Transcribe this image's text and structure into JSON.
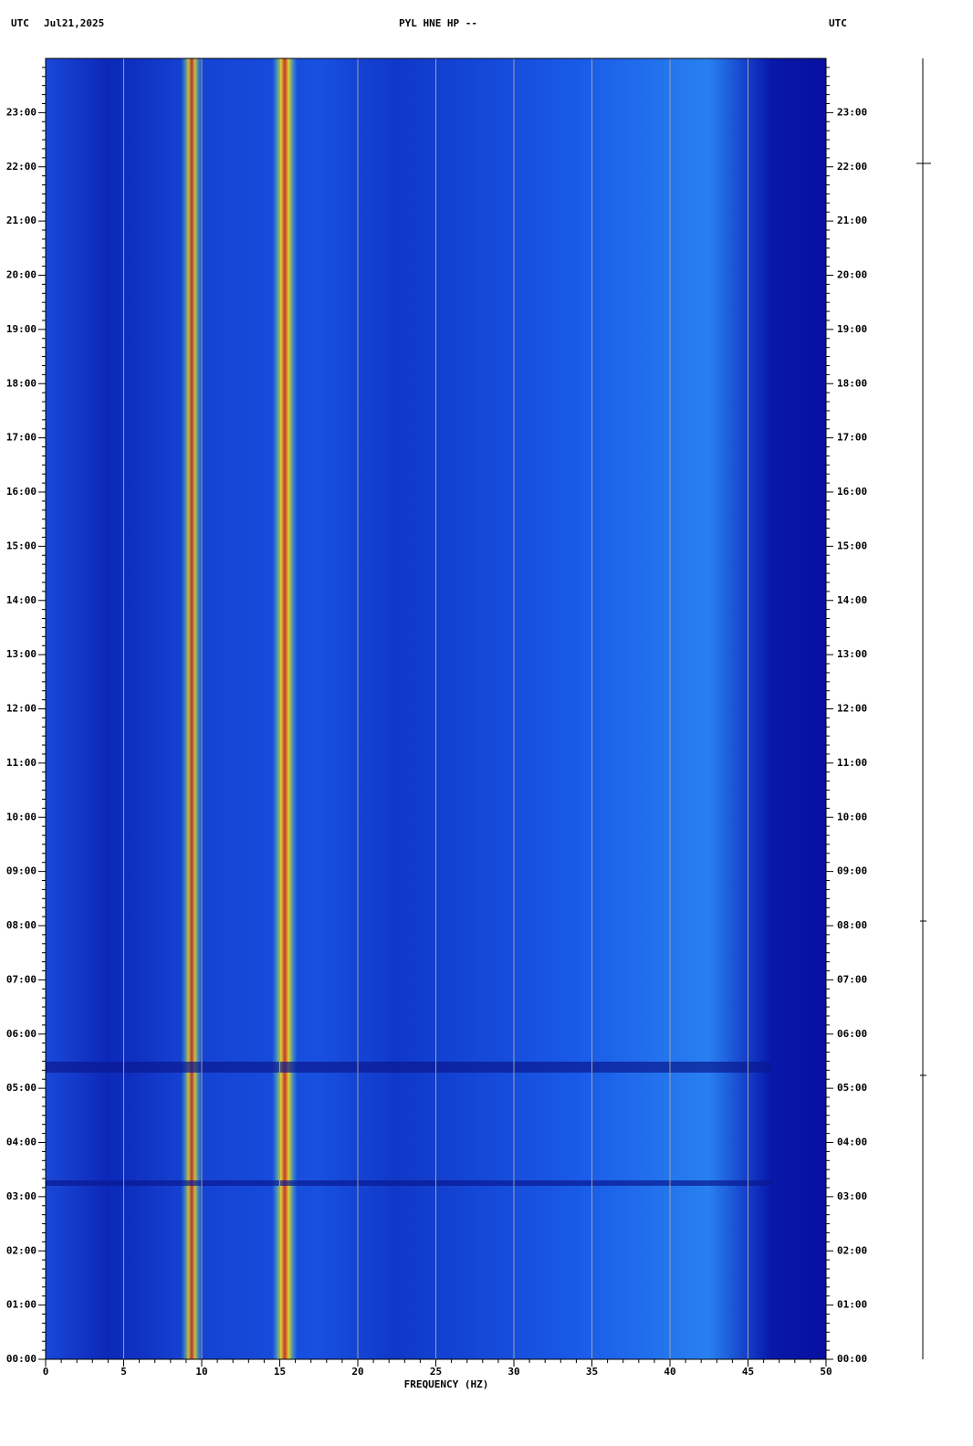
{
  "chart_data": {
    "type": "spectrogram",
    "title": "PYL HNE HP --",
    "timezone_left": "UTC",
    "date": "Jul21,2025",
    "timezone_right": "UTC",
    "x_label": "FREQUENCY (HZ)",
    "xlim": [
      0,
      50
    ],
    "xticks": [
      0,
      5,
      10,
      15,
      20,
      25,
      30,
      35,
      40,
      45,
      50
    ],
    "ylim": [
      0,
      24
    ],
    "yticks": [
      {
        "value": 0,
        "label": "00:00"
      },
      {
        "value": 1,
        "label": "01:00"
      },
      {
        "value": 2,
        "label": "02:00"
      },
      {
        "value": 3,
        "label": "03:00"
      },
      {
        "value": 4,
        "label": "04:00"
      },
      {
        "value": 5,
        "label": "05:00"
      },
      {
        "value": 6,
        "label": "06:00"
      },
      {
        "value": 7,
        "label": "07:00"
      },
      {
        "value": 8,
        "label": "08:00"
      },
      {
        "value": 9,
        "label": "09:00"
      },
      {
        "value": 10,
        "label": "10:00"
      },
      {
        "value": 11,
        "label": "11:00"
      },
      {
        "value": 12,
        "label": "12:00"
      },
      {
        "value": 13,
        "label": "13:00"
      },
      {
        "value": 14,
        "label": "14:00"
      },
      {
        "value": 15,
        "label": "15:00"
      },
      {
        "value": 16,
        "label": "16:00"
      },
      {
        "value": 17,
        "label": "17:00"
      },
      {
        "value": 18,
        "label": "18:00"
      },
      {
        "value": 19,
        "label": "19:00"
      },
      {
        "value": 20,
        "label": "20:00"
      },
      {
        "value": 21,
        "label": "21:00"
      },
      {
        "value": 22,
        "label": "22:00"
      },
      {
        "value": 23,
        "label": "23:00"
      }
    ],
    "grid": true,
    "grid_color": "#a0a0a0"
  }
}
